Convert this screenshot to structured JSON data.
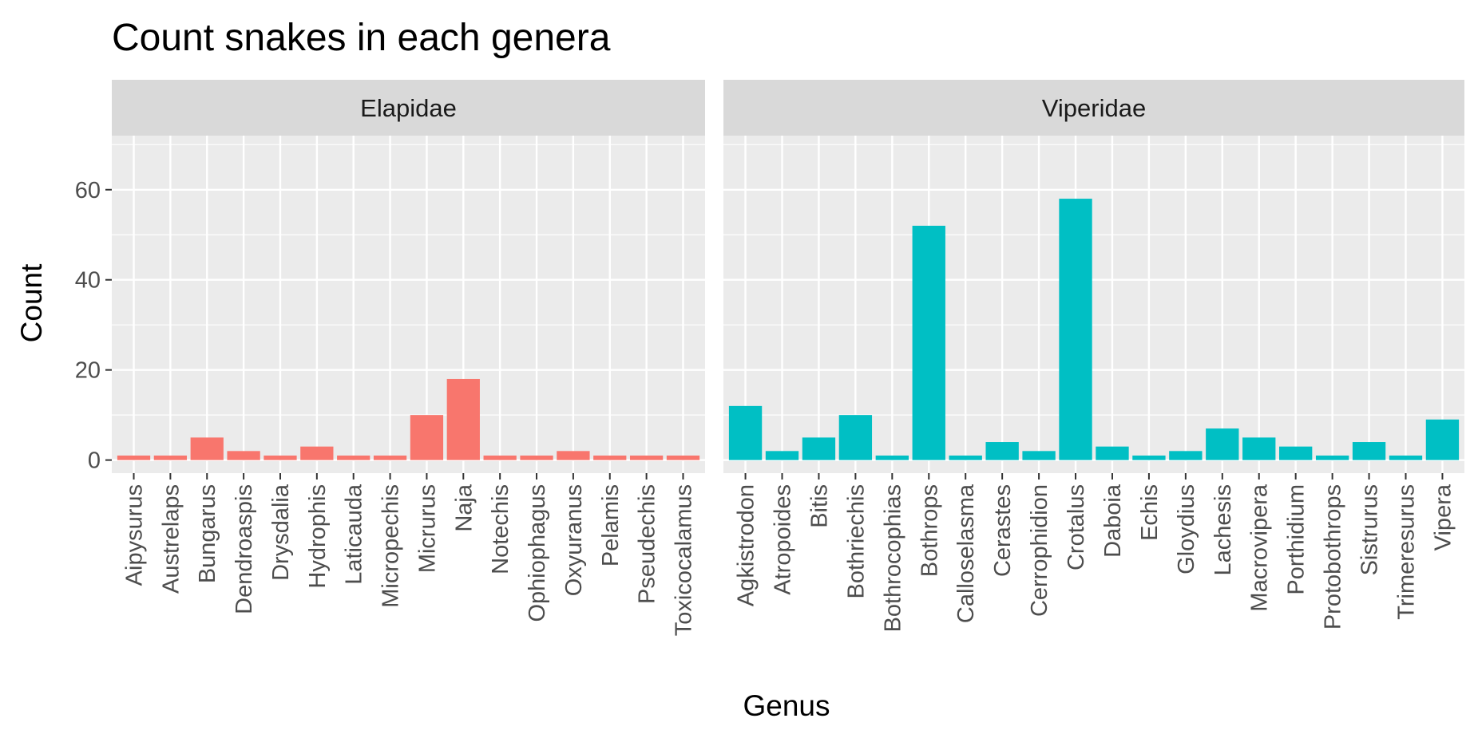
{
  "chart_data": {
    "type": "bar",
    "title": "Count snakes in each genera",
    "xlabel": "Genus",
    "ylabel": "Count",
    "ylim": [
      -2.9,
      72
    ],
    "y_ticks": [
      0,
      20,
      40,
      60
    ],
    "grid": true,
    "legend": "none",
    "facets": [
      {
        "name": "Elapidae",
        "color": "#F8766D",
        "categories": [
          "Aipysurus",
          "Austrelaps",
          "Bungarus",
          "Dendroaspis",
          "Drysdalia",
          "Hydrophis",
          "Laticauda",
          "Micropechis",
          "Micrurus",
          "Naja",
          "Notechis",
          "Ophiophagus",
          "Oxyuranus",
          "Pelamis",
          "Pseudechis",
          "Toxicocalamus"
        ],
        "values": [
          1,
          1,
          5,
          2,
          1,
          3,
          1,
          1,
          10,
          18,
          1,
          1,
          2,
          1,
          1,
          1
        ]
      },
      {
        "name": "Viperidae",
        "color": "#00BFC4",
        "categories": [
          "Agkistrodon",
          "Atropoides",
          "Bitis",
          "Bothriechis",
          "Bothrocophias",
          "Bothrops",
          "Calloselasma",
          "Cerastes",
          "Cerrophidion",
          "Crotalus",
          "Daboia",
          "Echis",
          "Gloydius",
          "Lachesis",
          "Macrovipera",
          "Porthidium",
          "Protobothrops",
          "Sistrurus",
          "Trimeresurus",
          "Vipera"
        ],
        "values": [
          12,
          2,
          5,
          10,
          1,
          52,
          1,
          4,
          2,
          58,
          3,
          1,
          2,
          7,
          5,
          3,
          1,
          4,
          1,
          9
        ]
      }
    ]
  }
}
